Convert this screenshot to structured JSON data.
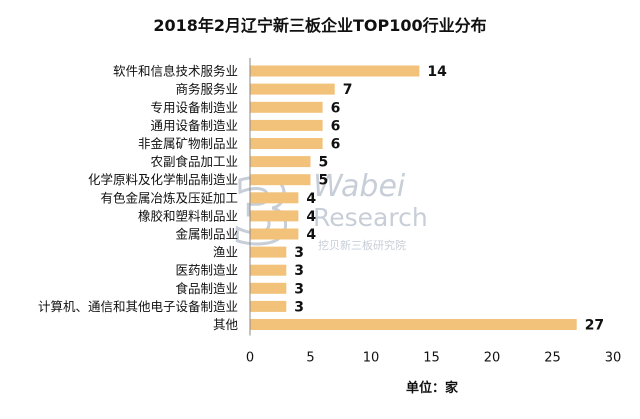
{
  "chart_data": {
    "type": "bar",
    "orientation": "horizontal",
    "title": "2018年2月辽宁新三板企业TOP100行业分布",
    "categories": [
      "软件和信息技术服务业",
      "商务服务业",
      "专用设备制造业",
      "通用设备制造业",
      "非金属矿物制品业",
      "农副食品加工业",
      "化学原料及化学制品制造业",
      "有色金属冶炼及压延加工",
      "橡胶和塑料制品业",
      "金属制品业",
      "渔业",
      "医药制造业",
      "食品制造业",
      "计算机、通信和其他电子设备制造业",
      "其他"
    ],
    "values": [
      14,
      7,
      6,
      6,
      6,
      5,
      5,
      4,
      4,
      4,
      3,
      3,
      3,
      3,
      27
    ],
    "xlim": [
      0,
      30
    ],
    "xticks": [
      0,
      5,
      10,
      15,
      20,
      25,
      30
    ],
    "xlabel": "单位：家",
    "bar_color": "#F2C27A",
    "grid": false,
    "legend": "none"
  },
  "watermark": {
    "logo": "3",
    "line1": "Wabei",
    "line2": "Research",
    "line3": "挖贝新三板研究院",
    "color": "#9AA7B8"
  }
}
